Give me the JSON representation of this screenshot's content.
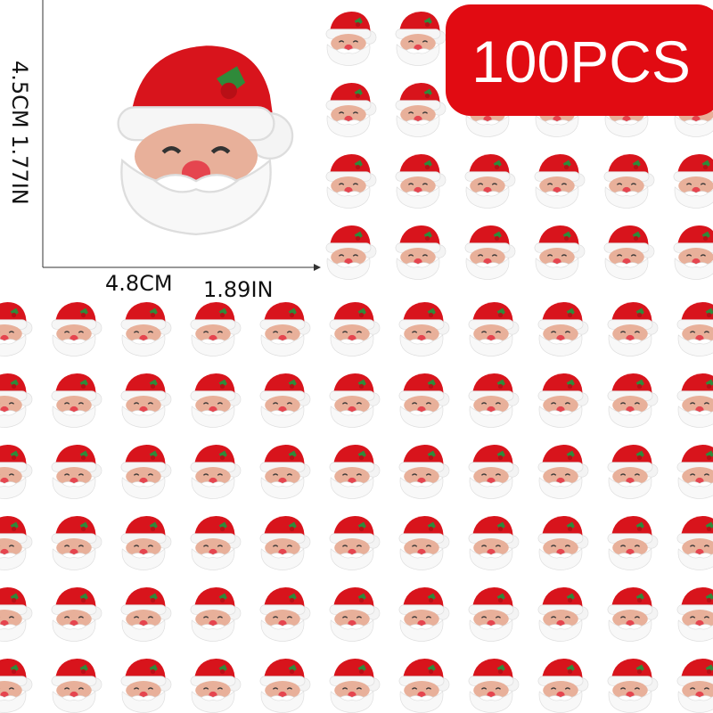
{
  "badge": "100PCS",
  "dimensions": {
    "height_cm": "4.5CM",
    "height_in": "1.77IN",
    "width_cm": "4.8CM",
    "width_in": "1.89IN"
  }
}
